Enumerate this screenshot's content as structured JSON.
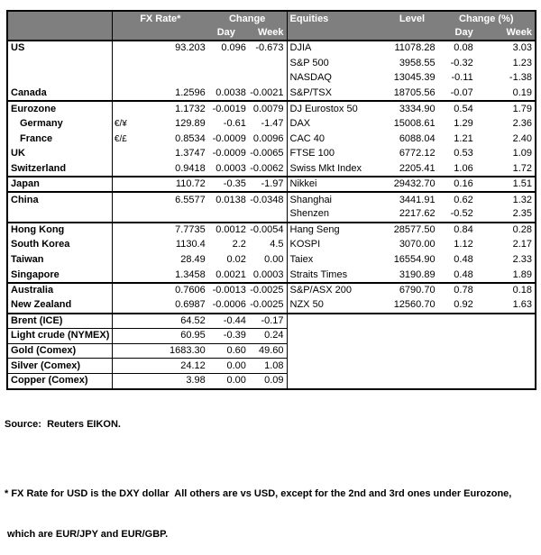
{
  "colors": {
    "header_bg": "#7f7f7f",
    "header_text": "#ffffff",
    "border": "#000000",
    "body_bg": "#ffffff"
  },
  "header": {
    "fx_rate": "FX Rate*",
    "fx_change": "Change",
    "day": "Day",
    "week": "Week",
    "equities": "Equities",
    "level": "Level",
    "eq_change": "Change (%)",
    "day2": "Day",
    "week2": "Week"
  },
  "rows": [
    {
      "label": "US",
      "sym": "",
      "rate": "93.203",
      "day": "0.096",
      "week": "-0.673",
      "eq": "DJIA",
      "level": "11078.28",
      "eday": "0.08",
      "eweek": "3.03",
      "sep": ""
    },
    {
      "label": "",
      "sym": "",
      "rate": "",
      "day": "",
      "week": "",
      "eq": "S&P 500",
      "level": "3958.55",
      "eday": "-0.32",
      "eweek": "1.23",
      "sep": ""
    },
    {
      "label": "",
      "sym": "",
      "rate": "",
      "day": "",
      "week": "",
      "eq": "NASDAQ",
      "level": "13045.39",
      "eday": "-0.11",
      "eweek": "-1.38",
      "sep": ""
    },
    {
      "label": "Canada",
      "sym": "",
      "rate": "1.2596",
      "day": "0.0038",
      "week": "-0.0021",
      "eq": "S&P/TSX",
      "level": "18705.56",
      "eday": "-0.07",
      "eweek": "0.19",
      "sep": "group"
    },
    {
      "label": "Eurozone",
      "sym": "",
      "rate": "1.1732",
      "day": "-0.0019",
      "week": "0.0079",
      "eq": "DJ Eurostox 50",
      "level": "3334.90",
      "eday": "0.54",
      "eweek": "1.79",
      "sep": ""
    },
    {
      "label": "Germany",
      "indent": true,
      "sym": "€/¥",
      "rate": "129.89",
      "day": "-0.61",
      "week": "-1.47",
      "eq": "DAX",
      "level": "15008.61",
      "eday": "1.29",
      "eweek": "2.36",
      "sep": ""
    },
    {
      "label": "France",
      "indent": true,
      "sym": "€/£",
      "rate": "0.8534",
      "day": "-0.0009",
      "week": "0.0096",
      "eq": "CAC 40",
      "level": "6088.04",
      "eday": "1.21",
      "eweek": "2.40",
      "sep": ""
    },
    {
      "label": "UK",
      "sym": "",
      "rate": "1.3747",
      "day": "-0.0009",
      "week": "-0.0065",
      "eq": "FTSE 100",
      "level": "6772.12",
      "eday": "0.53",
      "eweek": "1.09",
      "sep": ""
    },
    {
      "label": "Switzerland",
      "sym": "",
      "rate": "0.9418",
      "day": "0.0003",
      "week": "-0.0062",
      "eq": "Swiss Mkt Index",
      "level": "2205.41",
      "eday": "1.06",
      "eweek": "1.72",
      "sep": "group"
    },
    {
      "label": "Japan",
      "sym": "",
      "rate": "110.72",
      "day": "-0.35",
      "week": "-1.97",
      "eq": "Nikkei",
      "level": "29432.70",
      "eday": "0.16",
      "eweek": "1.51",
      "sep": "group"
    },
    {
      "label": "China",
      "sym": "",
      "rate": "6.5577",
      "day": "0.0138",
      "week": "-0.0348",
      "eq": "Shanghai",
      "level": "3441.91",
      "eday": "0.62",
      "eweek": "1.32",
      "sep": ""
    },
    {
      "label": "",
      "sym": "",
      "rate": "",
      "day": "",
      "week": "",
      "eq": "Shenzen",
      "level": "2217.62",
      "eday": "-0.52",
      "eweek": "2.35",
      "sep": "group"
    },
    {
      "label": "Hong Kong",
      "sym": "",
      "rate": "7.7735",
      "day": "0.0012",
      "week": "-0.0054",
      "eq": "Hang Seng",
      "level": "28577.50",
      "eday": "0.84",
      "eweek": "0.28",
      "sep": ""
    },
    {
      "label": "South Korea",
      "sym": "",
      "rate": "1130.4",
      "day": "2.2",
      "week": "4.5",
      "eq": "KOSPI",
      "level": "3070.00",
      "eday": "1.12",
      "eweek": "2.17",
      "sep": ""
    },
    {
      "label": "Taiwan",
      "sym": "",
      "rate": "28.49",
      "day": "0.02",
      "week": "0.00",
      "eq": "Taiex",
      "level": "16554.90",
      "eday": "0.48",
      "eweek": "2.33",
      "sep": ""
    },
    {
      "label": "Singapore",
      "sym": "",
      "rate": "1.3458",
      "day": "0.0021",
      "week": "0.0003",
      "eq": "Straits Times",
      "level": "3190.89",
      "eday": "0.48",
      "eweek": "1.89",
      "sep": "group"
    },
    {
      "label": "Australia",
      "sym": "",
      "rate": "0.7606",
      "day": "-0.0013",
      "week": "-0.0025",
      "eq": "S&P/ASX  200",
      "level": "6790.70",
      "eday": "0.78",
      "eweek": "0.18",
      "sep": ""
    },
    {
      "label": "New Zealand",
      "sym": "",
      "rate": "0.6987",
      "day": "-0.0006",
      "week": "-0.0025",
      "eq": "NZX 50",
      "level": "12560.70",
      "eday": "0.92",
      "eweek": "1.63",
      "sep": "group"
    },
    {
      "label": "Brent (ICE)",
      "sym": "",
      "rate": "64.52",
      "day": "-0.44",
      "week": "-0.17",
      "eq": "",
      "level": "",
      "eday": "",
      "eweek": "",
      "sep": "thin"
    },
    {
      "label": "Light crude (NYMEX)",
      "sym": "",
      "rate": "60.95",
      "day": "-0.39",
      "week": "0.24",
      "eq": "",
      "level": "",
      "eday": "",
      "eweek": "",
      "sep": "thin"
    },
    {
      "label": "Gold (Comex)",
      "sym": "",
      "rate": "1683.30",
      "day": "0.60",
      "week": "49.60",
      "eq": "",
      "level": "",
      "eday": "",
      "eweek": "",
      "sep": "thin"
    },
    {
      "label": "Silver (Comex)",
      "sym": "",
      "rate": "24.12",
      "day": "0.00",
      "week": "1.08",
      "eq": "",
      "level": "",
      "eday": "",
      "eweek": "",
      "sep": "thin"
    },
    {
      "label": "Copper (Comex)",
      "sym": "",
      "rate": "3.98",
      "day": "0.00",
      "week": "0.09",
      "eq": "",
      "level": "",
      "eday": "",
      "eweek": "",
      "sep": ""
    }
  ],
  "footer": {
    "source": "Source:  Reuters EIKON.",
    "note1": "* FX Rate for USD is the DXY dollar  All others are vs USD, except for the 2nd and 3rd ones under Eurozone,",
    "note2": " which are EUR/JPY and EUR/GBP."
  }
}
